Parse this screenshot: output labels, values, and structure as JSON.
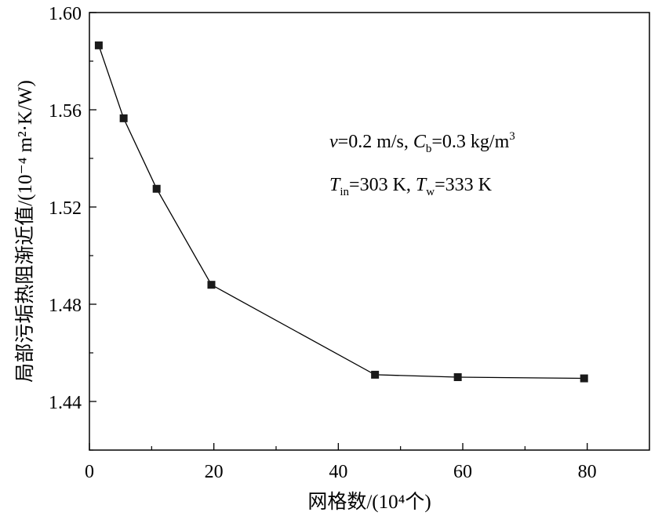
{
  "chart_data": {
    "type": "line",
    "xlabel": "网格数/(10⁴个)",
    "ylabel": "局部污垢热阻渐近值/(10⁻⁴ m²·K/W)",
    "xlim": [
      0,
      90
    ],
    "ylim": [
      1.42,
      1.6
    ],
    "x_ticks": [
      0,
      20,
      40,
      60,
      80
    ],
    "y_ticks": [
      1.44,
      1.48,
      1.52,
      1.56,
      1.6
    ],
    "x_tick_labels": [
      "0",
      "20",
      "40",
      "60",
      "80"
    ],
    "y_tick_labels": [
      "1.44",
      "1.48",
      "1.52",
      "1.56",
      "1.60"
    ],
    "grid": false,
    "marker": "square",
    "series": [
      {
        "x": [
          1.5,
          5.5,
          10.8,
          19.6,
          45.9,
          59.2,
          79.5
        ],
        "y": [
          1.5865,
          1.5565,
          1.5275,
          1.488,
          1.451,
          1.45,
          1.4495
        ]
      }
    ],
    "annotations": [
      "v=0.2 m/s, Cb=0.3 kg/m3",
      "Tin=303 K, Tw=333 K"
    ]
  }
}
